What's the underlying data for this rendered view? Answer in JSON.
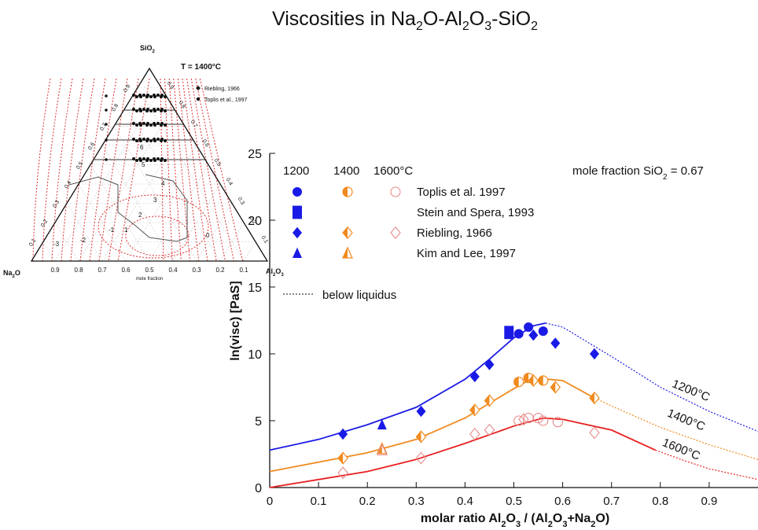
{
  "page": {
    "title_parts": [
      "Viscosities in Na",
      "2",
      "O-Al",
      "2",
      "O",
      "3",
      "-SiO",
      "2"
    ]
  },
  "ternary": {
    "apex_top_parts": [
      "SiO",
      "2"
    ],
    "apex_left_parts": [
      "Na",
      "2",
      "O"
    ],
    "apex_right_parts": [
      "Al",
      "2",
      "O",
      "3"
    ],
    "temperature": "T = 1400°C",
    "legend": [
      "Riebling, 1966",
      "Toplis et al., 1997"
    ],
    "bottom_ticks": [
      "0.9",
      "0.8",
      "0.7",
      "0.6",
      "0.5",
      "0.4",
      "0.3",
      "0.2",
      "0.1"
    ],
    "left_ticks": [
      "0.1",
      "0.2",
      "0.3",
      "0.4",
      "0.5",
      "0.6",
      "0.7",
      "0.8",
      "0.9"
    ],
    "right_ticks": [
      "0.9",
      "0.8",
      "0.7",
      "0.6",
      "0.5",
      "0.4",
      "0.3",
      "0.2",
      "0.1"
    ],
    "axis_label": "mole fraction",
    "contour_labels": [
      "6",
      "5",
      "4",
      "3",
      "2",
      "1",
      "0",
      "-1",
      "-2",
      "-3"
    ],
    "colors": {
      "contour": "#e03030",
      "points": "#111111",
      "frame": "#111111"
    }
  },
  "chart_data": {
    "type": "scatter",
    "xlabel_parts": [
      "molar ratio Al",
      "2",
      "O",
      "3",
      " / (Al",
      "2",
      "O",
      "3",
      "+Na",
      "2",
      "O)"
    ],
    "ylabel": "ln(visc) [PaS]",
    "xlim": [
      0,
      1.0
    ],
    "ylim": [
      0,
      25
    ],
    "xticks": [
      0,
      0.1,
      0.2,
      0.3,
      0.4,
      0.5,
      0.6,
      0.7,
      0.8,
      0.9
    ],
    "yticks": [
      0,
      5,
      10,
      15,
      20,
      25
    ],
    "annotation_parts": [
      "mole fraction SiO",
      "2",
      " = 0.67"
    ],
    "legend_header": [
      "1200",
      "1400",
      "1600°C"
    ],
    "legend_sources": [
      "Toplis et al. 1997",
      "Stein and Spera, 1993",
      "Riebling, 1966",
      "Kim and Lee, 1997"
    ],
    "legend_line": "below liquidus",
    "series": [
      {
        "name": "1200°C",
        "color": "#1a1ae6",
        "curve_solid": [
          [
            0,
            2.8
          ],
          [
            0.1,
            3.6
          ],
          [
            0.2,
            4.7
          ],
          [
            0.3,
            6.0
          ],
          [
            0.4,
            8.1
          ],
          [
            0.45,
            9.6
          ],
          [
            0.5,
            11.2
          ],
          [
            0.54,
            12.1
          ],
          [
            0.565,
            12.3
          ]
        ],
        "curve_dashed": [
          [
            0.565,
            12.3
          ],
          [
            0.6,
            12.0
          ],
          [
            0.7,
            9.8
          ],
          [
            0.8,
            7.5
          ],
          [
            0.9,
            5.7
          ],
          [
            1.0,
            4.2
          ]
        ],
        "points": [
          {
            "source": "Toplis et al. 1997",
            "marker": "circle",
            "data": [
              [
                0.51,
                11.5
              ],
              [
                0.53,
                12.0
              ],
              [
                0.56,
                11.7
              ]
            ]
          },
          {
            "source": "Stein and Spera, 1993",
            "marker": "square",
            "data": [
              [
                0.49,
                11.6
              ]
            ]
          },
          {
            "source": "Riebling, 1966",
            "marker": "diamond",
            "data": [
              [
                0.15,
                4.0
              ],
              [
                0.31,
                5.7
              ],
              [
                0.42,
                8.3
              ],
              [
                0.45,
                9.2
              ],
              [
                0.54,
                11.4
              ],
              [
                0.585,
                10.8
              ],
              [
                0.665,
                10.0
              ]
            ]
          },
          {
            "source": "Kim and Lee, 1997",
            "marker": "triangle",
            "data": [
              [
                0.23,
                4.7
              ]
            ]
          }
        ]
      },
      {
        "name": "1400°C",
        "color": "#f08a1e",
        "curve_solid": [
          [
            0,
            1.2
          ],
          [
            0.1,
            1.9
          ],
          [
            0.2,
            2.6
          ],
          [
            0.3,
            3.6
          ],
          [
            0.4,
            5.2
          ],
          [
            0.45,
            6.3
          ],
          [
            0.5,
            7.4
          ],
          [
            0.53,
            8.0
          ],
          [
            0.57,
            8.1
          ],
          [
            0.6,
            8.0
          ],
          [
            0.66,
            6.8
          ]
        ],
        "curve_dashed": [
          [
            0.66,
            6.8
          ],
          [
            0.7,
            6.1
          ],
          [
            0.8,
            4.5
          ],
          [
            0.9,
            3.2
          ],
          [
            1.0,
            2.1
          ]
        ],
        "points": [
          {
            "source": "Toplis et al. 1997",
            "marker": "half-circle",
            "data": [
              [
                0.51,
                7.9
              ],
              [
                0.53,
                8.2
              ],
              [
                0.56,
                8.0
              ]
            ]
          },
          {
            "source": "Riebling, 1966",
            "marker": "half-diamond",
            "data": [
              [
                0.15,
                2.2
              ],
              [
                0.31,
                3.8
              ],
              [
                0.42,
                5.8
              ],
              [
                0.45,
                6.5
              ],
              [
                0.54,
                8.0
              ],
              [
                0.585,
                7.5
              ],
              [
                0.665,
                6.7
              ]
            ]
          },
          {
            "source": "Kim and Lee, 1997",
            "marker": "half-triangle",
            "data": [
              [
                0.23,
                2.9
              ]
            ]
          }
        ]
      },
      {
        "name": "1600°C",
        "color": "#e82020",
        "curve_solid": [
          [
            0,
            0
          ],
          [
            0.1,
            0.6
          ],
          [
            0.2,
            1.2
          ],
          [
            0.3,
            2.1
          ],
          [
            0.4,
            3.3
          ],
          [
            0.5,
            4.6
          ],
          [
            0.56,
            5.2
          ],
          [
            0.6,
            5.1
          ],
          [
            0.7,
            4.3
          ],
          [
            0.79,
            2.8
          ]
        ],
        "curve_dashed": [
          [
            0.79,
            2.8
          ],
          [
            0.85,
            2.0
          ],
          [
            0.9,
            1.4
          ],
          [
            1.0,
            0.6
          ]
        ],
        "points": [
          {
            "source": "Toplis et al. 1997",
            "marker": "open-circle",
            "data": [
              [
                0.51,
                5.0
              ],
              [
                0.53,
                5.2
              ],
              [
                0.55,
                5.2
              ],
              [
                0.56,
                5.0
              ],
              [
                0.59,
                4.9
              ]
            ]
          },
          {
            "source": "Riebling, 1966",
            "marker": "open-diamond",
            "data": [
              [
                0.15,
                1.1
              ],
              [
                0.31,
                2.2
              ],
              [
                0.42,
                4.0
              ],
              [
                0.45,
                4.3
              ],
              [
                0.52,
                5.1
              ],
              [
                0.665,
                4.1
              ]
            ]
          },
          {
            "source": "Kim and Lee, 1997",
            "marker": "open-triangle",
            "data": [
              [
                0.23,
                2.8
              ]
            ]
          }
        ]
      }
    ],
    "curve_labels": [
      {
        "text": "1200°C",
        "at": [
          0.86,
          7.0
        ]
      },
      {
        "text": "1400°C",
        "at": [
          0.85,
          4.8
        ]
      },
      {
        "text": "1600°C",
        "at": [
          0.84,
          2.6
        ]
      }
    ]
  }
}
